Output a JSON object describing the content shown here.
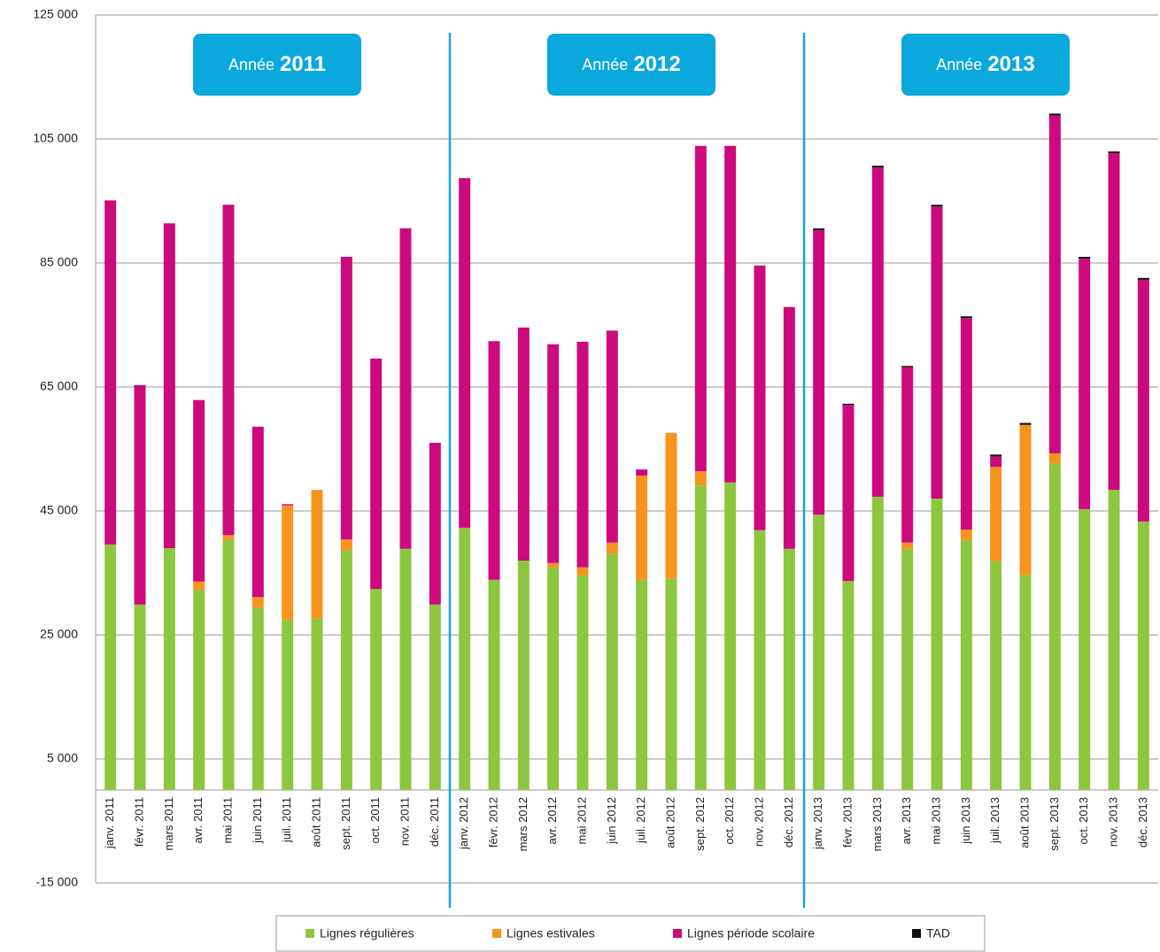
{
  "chart_data": {
    "type": "stacked_bar",
    "annotations": [
      {
        "prefix": "Année",
        "year": "2011"
      },
      {
        "prefix": "Année",
        "year": "2012"
      },
      {
        "prefix": "Année",
        "year": "2013"
      }
    ],
    "categories": [
      "janv. 2011",
      "févr. 2011",
      "mars 2011",
      "avr. 2011",
      "mai 2011",
      "juin 2011",
      "juil. 2011",
      "août 2011",
      "sept. 2011",
      "oct. 2011",
      "nov. 2011",
      "déc. 2011",
      "janv. 2012",
      "févr. 2012",
      "mars 2012",
      "avr. 2012",
      "mai 2012",
      "juin 2012",
      "juil. 2012",
      "août 2012",
      "sept. 2012",
      "oct. 2012",
      "nov. 2012",
      "déc. 2012",
      "janv. 2013",
      "févr. 2013",
      "mars 2013",
      "avr. 2013",
      "mai 2013",
      "juin 2013",
      "juil. 2013",
      "août 2013",
      "sept. 2013",
      "oct. 2013",
      "nov. 2013",
      "déc. 2013"
    ],
    "series": [
      {
        "name": "Lignes régulières",
        "color": "#8dc63f",
        "values": [
          39600,
          29900,
          39000,
          32300,
          40300,
          29400,
          27400,
          27700,
          38700,
          32400,
          38900,
          29900,
          42300,
          33900,
          37000,
          35900,
          34600,
          38100,
          33900,
          34100,
          49100,
          49600,
          41900,
          38900,
          44400,
          33700,
          47300,
          38900,
          47000,
          40300,
          36900,
          34700,
          52700,
          45300,
          48400,
          43300
        ]
      },
      {
        "name": "Lignes estivales",
        "color": "#f7941d",
        "values": [
          0,
          0,
          0,
          1300,
          800,
          1700,
          18500,
          20700,
          1700,
          0,
          0,
          0,
          0,
          0,
          0,
          700,
          1300,
          1800,
          16800,
          23500,
          2300,
          0,
          0,
          0,
          0,
          0,
          0,
          1000,
          0,
          1700,
          15200,
          24200,
          1600,
          0,
          0,
          0
        ]
      },
      {
        "name": "Lignes période scolaire",
        "color": "#cc0a7d",
        "values": [
          55500,
          35400,
          52400,
          29300,
          53300,
          27500,
          200,
          0,
          45600,
          37200,
          51700,
          26100,
          56400,
          38500,
          37600,
          35300,
          36400,
          34200,
          1000,
          0,
          52500,
          54300,
          42700,
          39000,
          45900,
          28400,
          53100,
          28300,
          47100,
          34100,
          1700,
          0,
          54500,
          40400,
          54300,
          39000
        ]
      },
      {
        "name": "TAD",
        "color": "#111111",
        "values": [
          0,
          0,
          0,
          0,
          0,
          0,
          0,
          0,
          0,
          0,
          0,
          0,
          0,
          0,
          0,
          0,
          0,
          0,
          0,
          0,
          0,
          0,
          0,
          0,
          300,
          200,
          300,
          200,
          300,
          300,
          300,
          300,
          300,
          300,
          300,
          300
        ]
      }
    ],
    "ylim": [
      -15000,
      125000
    ],
    "yticks": [
      {
        "value": -15000,
        "label": "-15 000"
      },
      {
        "value": 5000,
        "label": "5 000"
      },
      {
        "value": 25000,
        "label": "25 000"
      },
      {
        "value": 45000,
        "label": "45 000"
      },
      {
        "value": 65000,
        "label": "65 000"
      },
      {
        "value": 85000,
        "label": "85 000"
      },
      {
        "value": 105000,
        "label": "105 000"
      },
      {
        "value": 125000,
        "label": "125 000"
      }
    ],
    "grid": true
  }
}
